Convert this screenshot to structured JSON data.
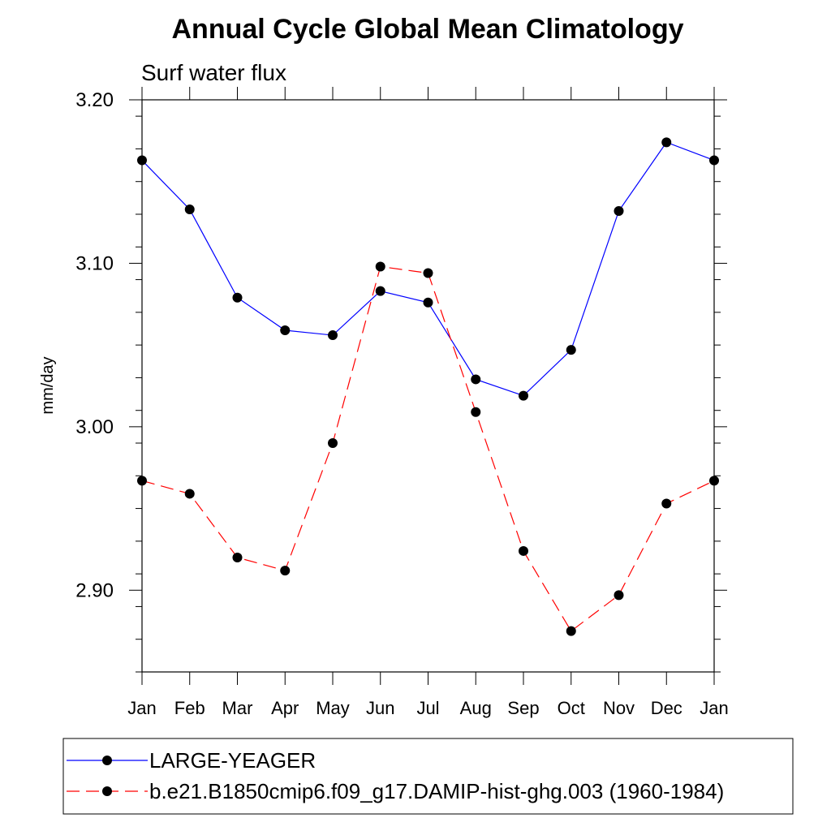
{
  "chart_data": {
    "type": "line",
    "title": "Annual Cycle Global Mean Climatology",
    "subtitle": "Surf water flux",
    "xlabel": "",
    "ylabel": "mm/day",
    "categories": [
      "Jan",
      "Feb",
      "Mar",
      "Apr",
      "May",
      "Jun",
      "Jul",
      "Aug",
      "Sep",
      "Oct",
      "Nov",
      "Dec",
      "Jan"
    ],
    "ylim": [
      2.85,
      3.2
    ],
    "yticks": [
      2.9,
      3.0,
      3.1,
      3.2
    ],
    "ytick_labels": [
      "2.90",
      "3.00",
      "3.10",
      "3.20"
    ],
    "grid": false,
    "legend_position": "bottom",
    "series": [
      {
        "name": "LARGE-YEAGER",
        "color": "#0000ff",
        "dash": "solid",
        "values": [
          3.163,
          3.133,
          3.079,
          3.059,
          3.056,
          3.083,
          3.076,
          3.029,
          3.019,
          3.047,
          3.132,
          3.174,
          3.163
        ]
      },
      {
        "name": "b.e21.B1850cmip6.f09_g17.DAMIP-hist-ghg.003 (1960-1984)",
        "color": "#ff0000",
        "dash": "dashed",
        "values": [
          2.967,
          2.959,
          2.92,
          2.912,
          2.99,
          3.098,
          3.094,
          3.009,
          2.924,
          2.875,
          2.897,
          2.953,
          2.967
        ]
      }
    ]
  }
}
